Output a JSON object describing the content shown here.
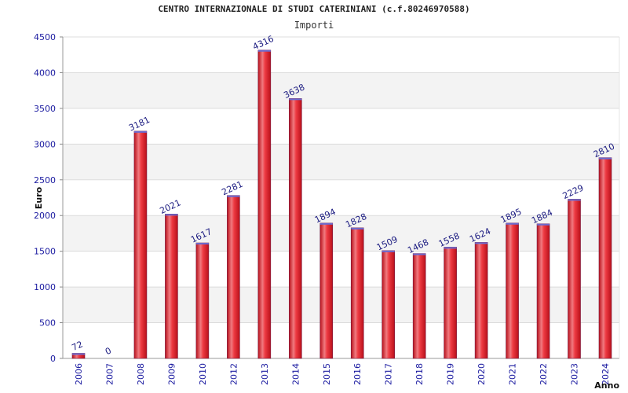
{
  "chart_data": {
    "type": "bar",
    "title": "CENTRO INTERNAZIONALE DI STUDI CATERINIANI (c.f.80246970588)",
    "subtitle": "Importi",
    "xlabel": "Anno",
    "ylabel": "Euro",
    "ylim": [
      0,
      4500
    ],
    "yticks": [
      0,
      500,
      1000,
      1500,
      2000,
      2500,
      3000,
      3500,
      4000,
      4500
    ],
    "categories": [
      "2006",
      "2007",
      "2008",
      "2009",
      "2010",
      "2012",
      "2013",
      "2014",
      "2015",
      "2016",
      "2017",
      "2018",
      "2019",
      "2020",
      "2021",
      "2022",
      "2023",
      "2024"
    ],
    "values": [
      72,
      0,
      3181,
      2021,
      1617,
      2281,
      4316,
      3638,
      1894,
      1828,
      1509,
      1468,
      1558,
      1624,
      1895,
      1884,
      2229,
      2810
    ],
    "grid": true,
    "bar_color": "#e8202a"
  }
}
